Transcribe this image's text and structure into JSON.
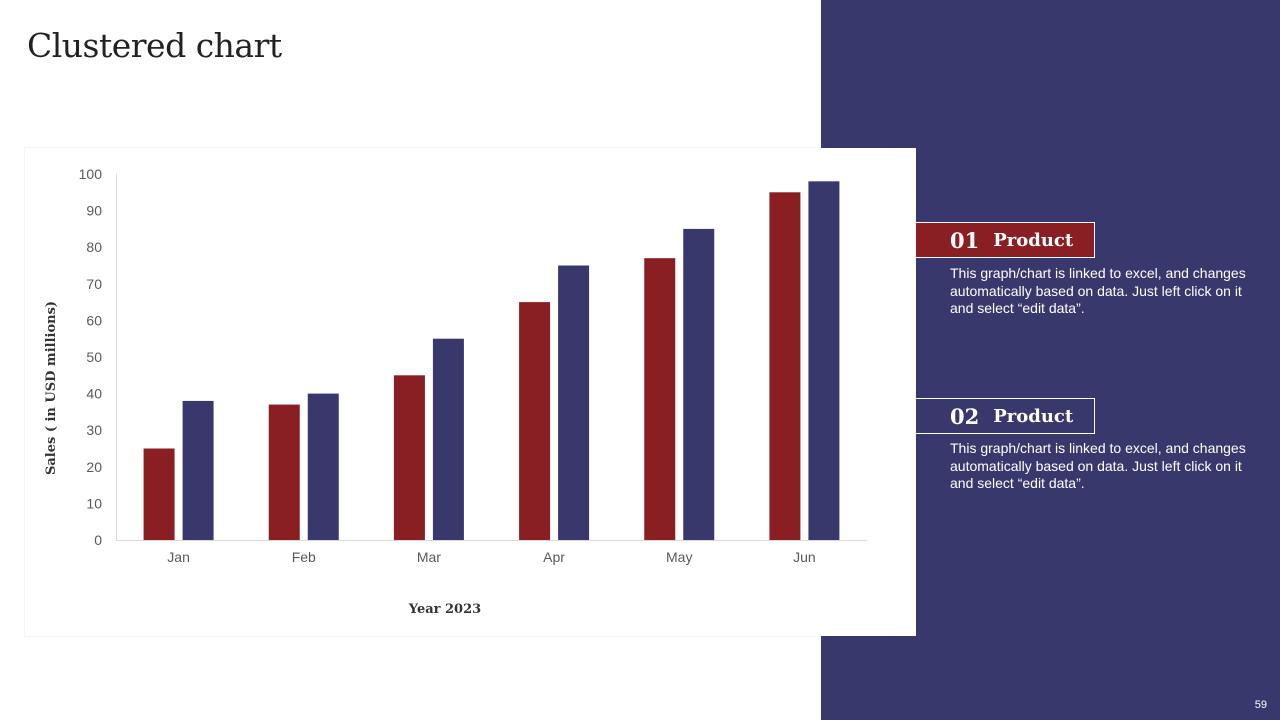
{
  "slide": {
    "title": "Clustered chart",
    "page_number": "59"
  },
  "colors": {
    "panel": "#39386d",
    "series_1": "#8a1f23",
    "series_2": "#39386d"
  },
  "legend": [
    {
      "number": "01",
      "label": "Product",
      "description": "This graph/chart is linked to excel, and changes automatically based on data. Just left click on it and select “edit data”."
    },
    {
      "number": "02",
      "label": "Product",
      "description": "This graph/chart is linked to excel, and changes automatically based on data. Just left click on it and select “edit data”."
    }
  ],
  "chart_data": {
    "type": "bar",
    "categories": [
      "Jan",
      "Feb",
      "Mar",
      "Apr",
      "May",
      "Jun"
    ],
    "series": [
      {
        "values": [
          25,
          37,
          45,
          65,
          77,
          95
        ],
        "color": "#8a1f23"
      },
      {
        "values": [
          38,
          40,
          55,
          75,
          85,
          98
        ],
        "color": "#39386d"
      }
    ],
    "xlabel": "Year 2023",
    "ylabel": "Sales  ( in USD millions)",
    "ylim": [
      0,
      100
    ],
    "yticks": [
      0,
      10,
      20,
      30,
      40,
      50,
      60,
      70,
      80,
      90,
      100
    ],
    "grid": false,
    "legend_position": "right"
  }
}
